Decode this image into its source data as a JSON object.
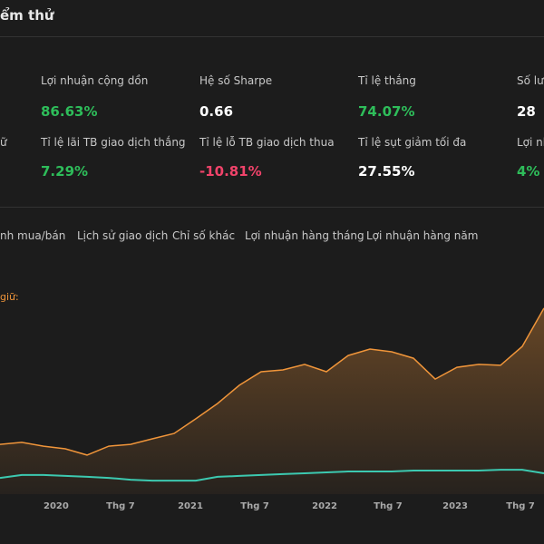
{
  "header": {
    "title": "ểm thử"
  },
  "metrics": [
    {
      "label": "Lợi nhuận cộng dồn",
      "value": "86.63%",
      "color": "#2ebd5a"
    },
    {
      "label": "Hệ số Sharpe",
      "value": "0.66",
      "color": "#ffffff"
    },
    {
      "label": "Tỉ lệ thắng",
      "value": "74.07%",
      "color": "#2ebd5a"
    },
    {
      "label": "Số lượ",
      "value": "28",
      "color": "#ffffff"
    },
    {
      "label": "ữ"
    },
    {
      "label": "Tỉ lệ lãi TB giao dịch thắng",
      "value": "7.29%",
      "color": "#2ebd5a"
    },
    {
      "label": "Tỉ lệ lỗ TB giao dịch thua",
      "value": "-10.81%",
      "color": "#f0436a"
    },
    {
      "label": "Tỉ lệ sụt giảm tối đa",
      "value": "27.55%",
      "color": "#ffffff"
    },
    {
      "label": "Lợi nhu",
      "value": "4%",
      "color": "#2ebd5a"
    }
  ],
  "tabs": [
    "nh mua/bán",
    "Lịch sử giao dịch",
    "Chỉ số khác",
    "Lợi nhuận hàng tháng",
    "Lợi nhuận hàng năm"
  ],
  "chart": {
    "type": "line",
    "annotation": "giữ:",
    "ylim": [
      0,
      100
    ],
    "xlim": [
      0,
      25
    ],
    "xticks": [
      {
        "value": 2.58,
        "label": "2020"
      },
      {
        "value": 5.54,
        "label": "Thg 7"
      },
      {
        "value": 8.75,
        "label": "2021"
      },
      {
        "value": 11.71,
        "label": "Thg 7"
      },
      {
        "value": 14.92,
        "label": "2022"
      },
      {
        "value": 17.83,
        "label": "Thg 7"
      },
      {
        "value": 20.92,
        "label": "2023"
      },
      {
        "value": 23.92,
        "label": "Thg 7"
      }
    ],
    "series": [
      {
        "color": "#f0953a",
        "values": [
          22.4,
          23.3,
          21.6,
          20.4,
          17.6,
          21.6,
          22.4,
          24.9,
          27.3,
          33.9,
          40.8,
          49,
          55.1,
          55.9,
          58.4,
          55.1,
          62.4,
          65.3,
          64.1,
          61.2,
          51.8,
          57.1,
          58.4,
          58,
          66.5,
          83.7
        ]
      },
      {
        "color": "#3cc9b0",
        "values": [
          7.3,
          8.6,
          8.6,
          8.2,
          7.8,
          7.3,
          6.5,
          6.1,
          6.1,
          6.1,
          7.8,
          8.2,
          8.6,
          9,
          9.4,
          9.8,
          10.2,
          10.2,
          10.2,
          10.6,
          10.6,
          10.6,
          10.6,
          11,
          11,
          9.4
        ]
      }
    ]
  }
}
